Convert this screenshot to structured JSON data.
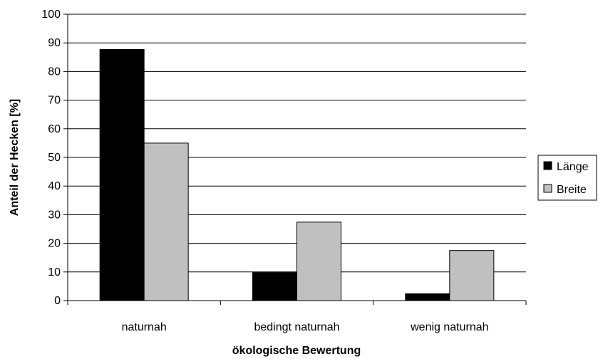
{
  "chart_data": {
    "type": "bar",
    "title": "",
    "xlabel": "ökologische Bewertung",
    "ylabel": "Anteil der Hecken [%]",
    "categories": [
      "naturnah",
      "bedingt naturnah",
      "wenig naturnah"
    ],
    "series": [
      {
        "name": "Länge",
        "color": "#000000",
        "values": [
          87.7,
          9.8,
          2.4
        ]
      },
      {
        "name": "Breite",
        "color": "#c0c0c0",
        "values": [
          55.0,
          27.4,
          17.5
        ]
      }
    ],
    "ylim": [
      0,
      100
    ],
    "yticks": [
      0,
      10,
      20,
      30,
      40,
      50,
      60,
      70,
      80,
      90,
      100
    ],
    "grid": true,
    "legend_position": "right"
  }
}
